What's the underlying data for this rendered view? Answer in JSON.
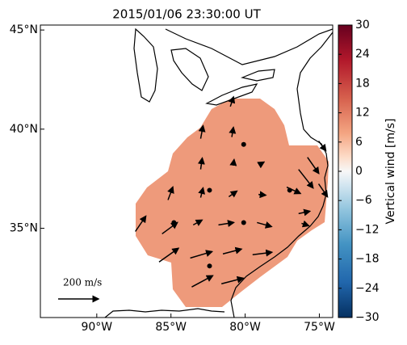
{
  "chart_data": {
    "type": "vector-map",
    "title": "2015/01/06 23:30:00 UT",
    "xlim": [
      -93.8,
      -74.1
    ],
    "ylim": [
      30.5,
      45.25
    ],
    "xticks": [
      {
        "value": -90,
        "label": "90°W"
      },
      {
        "value": -85,
        "label": "85°W"
      },
      {
        "value": -80,
        "label": "80°W"
      },
      {
        "value": -75,
        "label": "75°W"
      }
    ],
    "yticks": [
      {
        "value": 35,
        "label": "35°N"
      },
      {
        "value": 40,
        "label": "40°N"
      },
      {
        "value": 45,
        "label": "45°N"
      }
    ],
    "field_color": "#ee9a7b",
    "vectors": {
      "lon": [
        -87.4,
        -85.2,
        -83.0,
        -83.0,
        -83.0,
        -80.9,
        -80.8,
        -81.1,
        -79.1,
        -79.0,
        -81.0,
        -85.6,
        -83.5,
        -81.8,
        -79.2,
        -85.8,
        -83.7,
        -81.5,
        -79.5,
        -83.6,
        -81.6,
        -77.2,
        -76.4,
        -76.4,
        -75.8,
        -75.05,
        -75.05,
        -76.2
      ],
      "lat": [
        34.84,
        36.43,
        36.55,
        37.97,
        39.52,
        39.6,
        38.18,
        36.59,
        36.71,
        38.22,
        41.14,
        34.72,
        35.17,
        35.17,
        35.29,
        33.3,
        33.5,
        33.71,
        33.67,
        32.04,
        32.2,
        37.08,
        35.74,
        37.97,
        38.58,
        39.4,
        37.24,
        35.25
      ],
      "u": [
        52,
        24,
        12,
        8,
        12,
        8,
        4,
        40,
        36,
        20,
        16,
        76,
        44,
        76,
        72,
        96,
        108,
        92,
        96,
        104,
        108,
        68,
        56,
        72,
        56,
        36,
        44,
        36
      ],
      "v": [
        76,
        64,
        48,
        56,
        64,
        48,
        28,
        28,
        -4,
        12,
        48,
        56,
        24,
        12,
        -20,
        68,
        32,
        24,
        12,
        56,
        28,
        -32,
        12,
        -92,
        -80,
        -48,
        -64,
        -12
      ]
    },
    "stations": {
      "lon": [
        -80.1,
        -82.4,
        -80.1,
        -84.8,
        -82.4,
        -77.0
      ],
      "lat": [
        39.23,
        36.92,
        35.29,
        35.29,
        33.1,
        36.92
      ]
    },
    "scale_key": {
      "value": 200,
      "label": "200 m/s"
    },
    "colorbar": {
      "label": "Vertical wind [m/s]",
      "lim": [
        -30,
        30
      ],
      "ticks": [
        30,
        24,
        18,
        12,
        6,
        0,
        {
          "value": -6,
          "label": "−6"
        },
        {
          "value": -12,
          "label": "−12"
        },
        {
          "value": -18,
          "label": "−18"
        },
        {
          "value": -24,
          "label": "−24"
        },
        {
          "value": -30,
          "label": "−30"
        }
      ]
    }
  }
}
